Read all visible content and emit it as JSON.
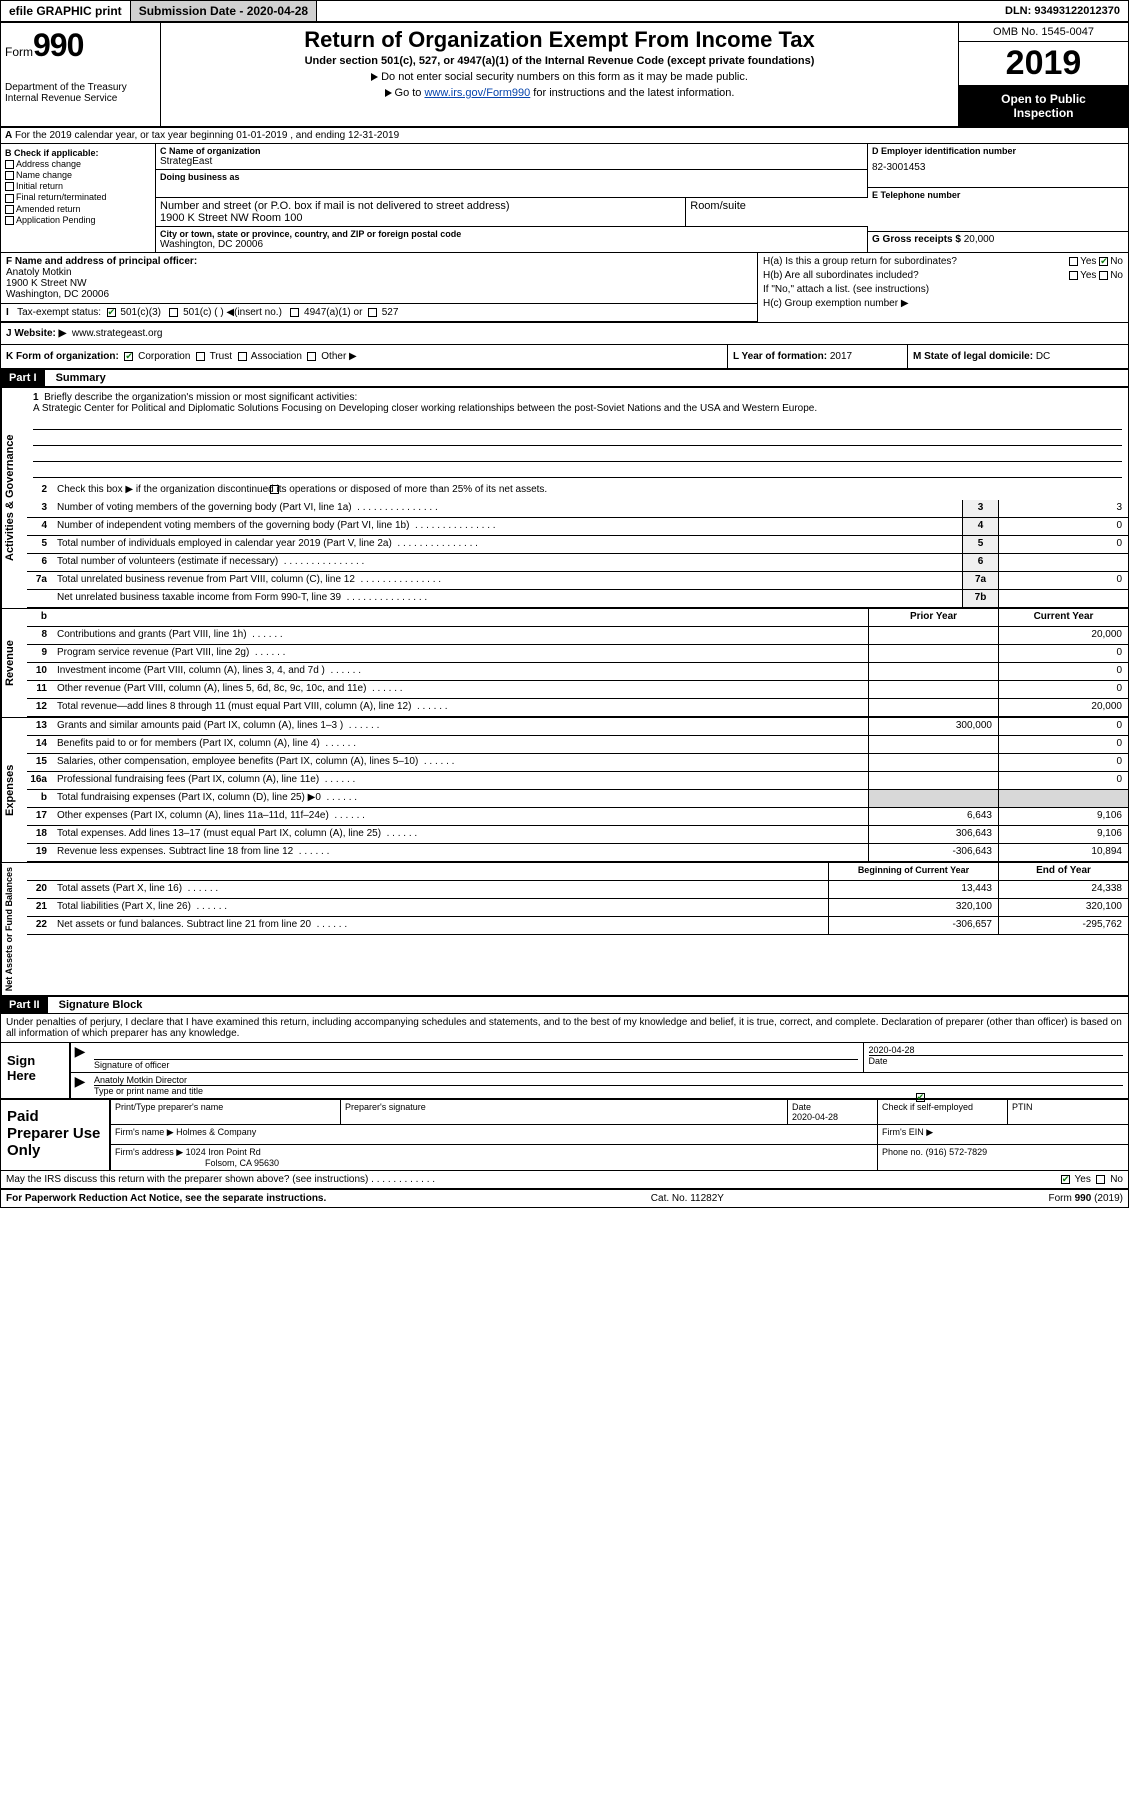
{
  "topbar": {
    "efile": "efile GRAPHIC print",
    "submission_label": "Submission Date - 2020-04-28",
    "dln": "DLN: 93493122012370"
  },
  "header": {
    "form_word": "Form",
    "form_num": "990",
    "dept": "Department of the Treasury Internal Revenue Service",
    "title": "Return of Organization Exempt From Income Tax",
    "sub1": "Under section 501(c), 527, or 4947(a)(1) of the Internal Revenue Code (except private foundations)",
    "sub2": "Do not enter social security numbers on this form as it may be made public.",
    "sub3_pre": "Go to ",
    "sub3_link": "www.irs.gov/Form990",
    "sub3_post": " for instructions and the latest information.",
    "omb": "OMB No. 1545-0047",
    "year": "2019",
    "open1": "Open to Public",
    "open2": "Inspection"
  },
  "rowA": "For the 2019 calendar year, or tax year beginning 01-01-2019   , and ending 12-31-2019",
  "B": {
    "hdr": "B Check if applicable:",
    "items": [
      "Address change",
      "Name change",
      "Initial return",
      "Final return/terminated",
      "Amended return",
      "Application Pending"
    ]
  },
  "C": {
    "name_lbl": "C Name of organization",
    "name": "StrategEast",
    "dba_lbl": "Doing business as",
    "addr_lbl": "Number and street (or P.O. box if mail is not delivered to street address)",
    "room_lbl": "Room/suite",
    "addr": "1900 K Street NW Room 100",
    "city_lbl": "City or town, state or province, country, and ZIP or foreign postal code",
    "city": "Washington, DC  20006"
  },
  "D": {
    "lbl": "D Employer identification number",
    "val": "82-3001453"
  },
  "E": {
    "lbl": "E Telephone number",
    "val": ""
  },
  "G": {
    "lbl": "G Gross receipts $",
    "val": "20,000"
  },
  "F": {
    "lbl": "F  Name and address of principal officer:",
    "name": "Anatoly Motkin",
    "addr1": "1900 K Street NW",
    "addr2": "Washington, DC  20006"
  },
  "H": {
    "a": "H(a)  Is this a group return for subordinates?",
    "b": "H(b)  Are all subordinates included?",
    "b2": "If \"No,\" attach a list. (see instructions)",
    "c": "H(c)  Group exemption number ▶"
  },
  "I": {
    "lbl": "Tax-exempt status:",
    "opts": [
      "501(c)(3)",
      "501(c) (  ) ◀(insert no.)",
      "4947(a)(1) or",
      "527"
    ]
  },
  "J": {
    "lbl": "J   Website: ▶",
    "val": "www.strategeast.org"
  },
  "K": {
    "lbl": "K Form of organization:",
    "opts": [
      "Corporation",
      "Trust",
      "Association",
      "Other ▶"
    ]
  },
  "L": {
    "lbl": "L Year of formation:",
    "val": "2017"
  },
  "M": {
    "lbl": "M State of legal domicile:",
    "val": "DC"
  },
  "part1": {
    "hdr": "Part I",
    "title": "Summary",
    "l1_lbl": "Briefly describe the organization's mission or most significant activities:",
    "l1": "A Strategic Center for Political and Diplomatic Solutions Focusing on Developing closer working relationships between the post-Soviet Nations and the USA and Western Europe.",
    "l2": "Check this box ▶        if the organization discontinued its operations or disposed of more than 25% of its net assets.",
    "rows_gov": [
      {
        "n": "3",
        "t": "Number of voting members of the governing body (Part VI, line 1a)",
        "b": "3",
        "v": "3"
      },
      {
        "n": "4",
        "t": "Number of independent voting members of the governing body (Part VI, line 1b)",
        "b": "4",
        "v": "0"
      },
      {
        "n": "5",
        "t": "Total number of individuals employed in calendar year 2019 (Part V, line 2a)",
        "b": "5",
        "v": "0"
      },
      {
        "n": "6",
        "t": "Total number of volunteers (estimate if necessary)",
        "b": "6",
        "v": ""
      },
      {
        "n": "7a",
        "t": "Total unrelated business revenue from Part VIII, column (C), line 12",
        "b": "7a",
        "v": "0"
      },
      {
        "n": "",
        "t": "Net unrelated business taxable income from Form 990-T, line 39",
        "b": "7b",
        "v": ""
      }
    ],
    "col_prior": "Prior Year",
    "col_curr": "Current Year",
    "rows_rev": [
      {
        "n": "8",
        "t": "Contributions and grants (Part VIII, line 1h)",
        "p": "",
        "c": "20,000"
      },
      {
        "n": "9",
        "t": "Program service revenue (Part VIII, line 2g)",
        "p": "",
        "c": "0"
      },
      {
        "n": "10",
        "t": "Investment income (Part VIII, column (A), lines 3, 4, and 7d )",
        "p": "",
        "c": "0"
      },
      {
        "n": "11",
        "t": "Other revenue (Part VIII, column (A), lines 5, 6d, 8c, 9c, 10c, and 11e)",
        "p": "",
        "c": "0"
      },
      {
        "n": "12",
        "t": "Total revenue—add lines 8 through 11 (must equal Part VIII, column (A), line 12)",
        "p": "",
        "c": "20,000"
      }
    ],
    "rows_exp": [
      {
        "n": "13",
        "t": "Grants and similar amounts paid (Part IX, column (A), lines 1–3 )",
        "p": "300,000",
        "c": "0"
      },
      {
        "n": "14",
        "t": "Benefits paid to or for members (Part IX, column (A), line 4)",
        "p": "",
        "c": "0"
      },
      {
        "n": "15",
        "t": "Salaries, other compensation, employee benefits (Part IX, column (A), lines 5–10)",
        "p": "",
        "c": "0"
      },
      {
        "n": "16a",
        "t": "Professional fundraising fees (Part IX, column (A), line 11e)",
        "p": "",
        "c": "0"
      },
      {
        "n": "b",
        "t": "Total fundraising expenses (Part IX, column (D), line 25) ▶0",
        "p": "grey",
        "c": "grey"
      },
      {
        "n": "17",
        "t": "Other expenses (Part IX, column (A), lines 11a–11d, 11f–24e)",
        "p": "6,643",
        "c": "9,106"
      },
      {
        "n": "18",
        "t": "Total expenses. Add lines 13–17 (must equal Part IX, column (A), line 25)",
        "p": "306,643",
        "c": "9,106"
      },
      {
        "n": "19",
        "t": "Revenue less expenses. Subtract line 18 from line 12",
        "p": "-306,643",
        "c": "10,894"
      }
    ],
    "col_begin": "Beginning of Current Year",
    "col_end": "End of Year",
    "rows_net": [
      {
        "n": "20",
        "t": "Total assets (Part X, line 16)",
        "p": "13,443",
        "c": "24,338"
      },
      {
        "n": "21",
        "t": "Total liabilities (Part X, line 26)",
        "p": "320,100",
        "c": "320,100"
      },
      {
        "n": "22",
        "t": "Net assets or fund balances. Subtract line 21 from line 20",
        "p": "-306,657",
        "c": "-295,762"
      }
    ]
  },
  "part2": {
    "hdr": "Part II",
    "title": "Signature Block",
    "decl": "Under penalties of perjury, I declare that I have examined this return, including accompanying schedules and statements, and to the best of my knowledge and belief, it is true, correct, and complete. Declaration of preparer (other than officer) is based on all information of which preparer has any knowledge."
  },
  "sign": {
    "here": "Sign Here",
    "sig_lbl": "Signature of officer",
    "date_lbl": "Date",
    "date": "2020-04-28",
    "name": "Anatoly Motkin  Director",
    "name_lbl": "Type or print name and title"
  },
  "prep": {
    "label": "Paid Preparer Use Only",
    "h1": "Print/Type preparer's name",
    "h2": "Preparer's signature",
    "h3": "Date",
    "date": "2020-04-28",
    "h4": "Check        if self-employed",
    "h5": "PTIN",
    "firm_lbl": "Firm's name    ▶",
    "firm": "Holmes & Company",
    "ein_lbl": "Firm's EIN ▶",
    "addr_lbl": "Firm's address ▶",
    "addr1": "1024 Iron Point Rd",
    "addr2": "Folsom, CA  95630",
    "phone_lbl": "Phone no.",
    "phone": "(916) 572-7829"
  },
  "discuss": "May the IRS discuss this return with the preparer shown above? (see instructions)",
  "footer": {
    "l": "For Paperwork Reduction Act Notice, see the separate instructions.",
    "m": "Cat. No. 11282Y",
    "r": "Form 990 (2019)"
  },
  "labels": {
    "yes": "Yes",
    "no": "No",
    "b_row": "b",
    "activities": "Activities & Governance",
    "revenue": "Revenue",
    "expenses": "Expenses",
    "netassets": "Net Assets or Fund Balances"
  }
}
